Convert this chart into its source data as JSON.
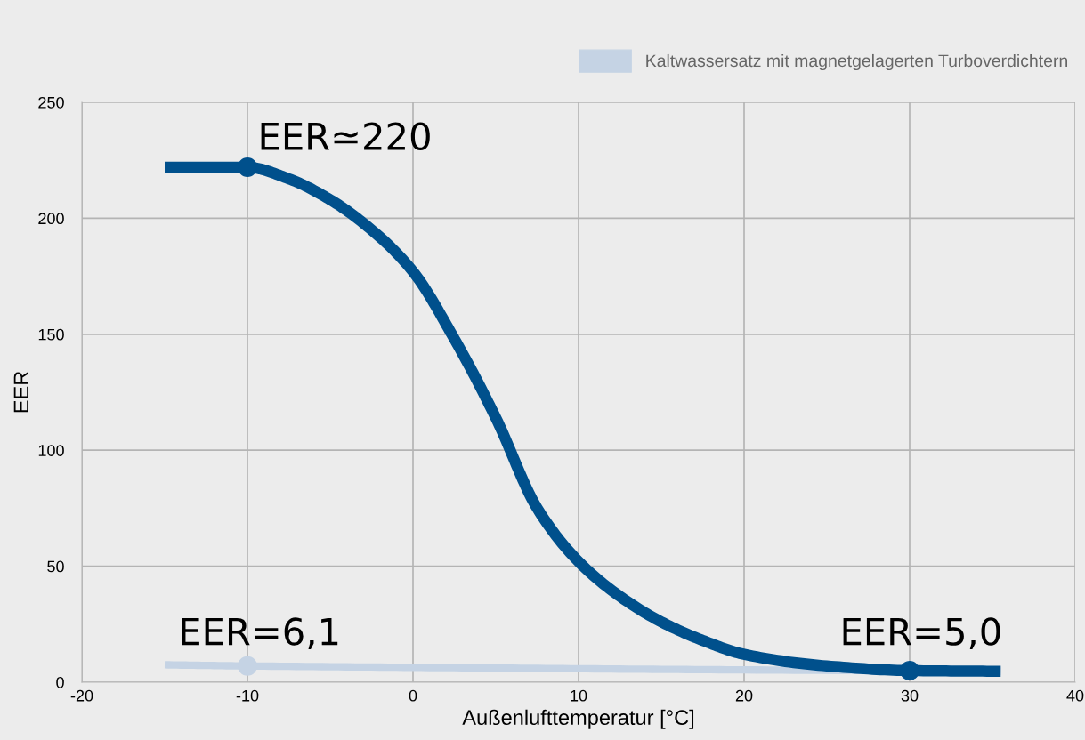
{
  "chart_data": {
    "type": "line",
    "xlabel": "Außenlufttemperatur [°C]",
    "ylabel": "EER",
    "xlim": [
      -20,
      40
    ],
    "xticks": [
      -20,
      -10,
      0,
      10,
      20,
      30,
      40
    ],
    "ylim": [
      0,
      250
    ],
    "yticks": [
      0,
      50,
      100,
      150,
      200,
      250
    ],
    "grid": true,
    "legend": "top right",
    "marker": "none",
    "line_style": "solid",
    "series": [
      {
        "color": "#00508c",
        "x": [
          -15,
          -10,
          -7.5,
          -5,
          -2.5,
          0,
          2.5,
          5,
          7.5,
          10,
          12.5,
          15,
          17.5,
          20,
          25,
          30,
          35.5
        ],
        "values": [
          222,
          222,
          217,
          208,
          195,
          177,
          148,
          114,
          75,
          52,
          37,
          26,
          18,
          12,
          7,
          5,
          4.7
        ]
      },
      {
        "name": "Kaltwassersatz mit magnetgelagerten Turboverdichtern",
        "color": "#c5d3e4",
        "x": [
          -15,
          -10,
          0,
          10,
          20,
          35.5
        ],
        "values": [
          7.5,
          7,
          6.4,
          5.8,
          5.3,
          4.7
        ]
      },
      {
        "type": "scatter",
        "marker": "circle",
        "color": "#00508c",
        "x": [
          -10,
          30
        ],
        "values": [
          222,
          5
        ]
      },
      {
        "type": "scatter",
        "marker": "circle",
        "color": "#c5d3e4",
        "x": [
          -10
        ],
        "values": [
          7
        ]
      }
    ],
    "annotations": [
      "EER≃220",
      "EER=6,1",
      "EER=5,0"
    ]
  }
}
